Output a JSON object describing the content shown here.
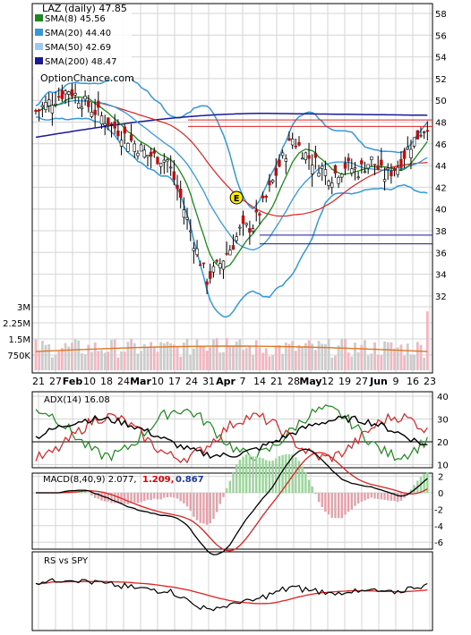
{
  "chart_data": [
    {
      "panel": "price",
      "type": "candlestick",
      "title": "LAZ (daily) 47.85",
      "ticker": "LAZ",
      "last": 47.85,
      "watermark": "OptionChance.com",
      "ylim": [
        30,
        58
      ],
      "yticks": [
        32,
        34,
        36,
        38,
        40,
        42,
        44,
        46,
        48,
        50,
        52,
        54,
        56,
        58
      ],
      "legend": [
        {
          "label": "SMA(8) 45.56",
          "color": "#1a8a1a"
        },
        {
          "label": "SMA(20) 44.40",
          "color": "#3399dd"
        },
        {
          "label": "SMA(50) 42.69",
          "color": "#99ccee"
        },
        {
          "label": "SMA(200) 48.47",
          "color": "#1a1a99"
        }
      ],
      "earnings_marker": "E",
      "resistance_lines": [
        47.6,
        48.2
      ],
      "support_lines": [
        37.6,
        36.8
      ],
      "grid": true
    },
    {
      "panel": "volume",
      "type": "bar",
      "yticks": [
        "3M",
        "2.25M",
        "1.5M",
        "750K"
      ],
      "ytick_values": [
        3000000,
        2250000,
        1500000,
        750000
      ]
    },
    {
      "panel": "dates",
      "xtick_labels": [
        "21",
        "27",
        "Feb",
        "10",
        "18",
        "24",
        "Mar",
        "10",
        "17",
        "24",
        "31",
        "Apr",
        "7",
        "14",
        "21",
        "28",
        "May",
        "12",
        "19",
        "27",
        "Jun",
        "9",
        "16",
        "23"
      ],
      "bold_labels": [
        "Feb",
        "Mar",
        "Apr",
        "May",
        "Jun"
      ]
    },
    {
      "panel": "adx",
      "type": "line",
      "label": "ADX(14) 16.08",
      "ylim": [
        10,
        40
      ],
      "yticks": [
        10,
        20,
        30,
        40
      ]
    },
    {
      "panel": "macd",
      "type": "line",
      "label": "MACD(8,40,9) 2.077,",
      "value_signal": "1.209,",
      "value_hist": "0.867",
      "signal_color": "#dd0000",
      "hist_color": "#1a3aa0",
      "ylim": [
        -7,
        2.5
      ],
      "yticks": [
        2,
        0,
        -2,
        -4,
        -6
      ]
    },
    {
      "panel": "rs",
      "type": "line",
      "label": "RS vs SPY"
    }
  ]
}
